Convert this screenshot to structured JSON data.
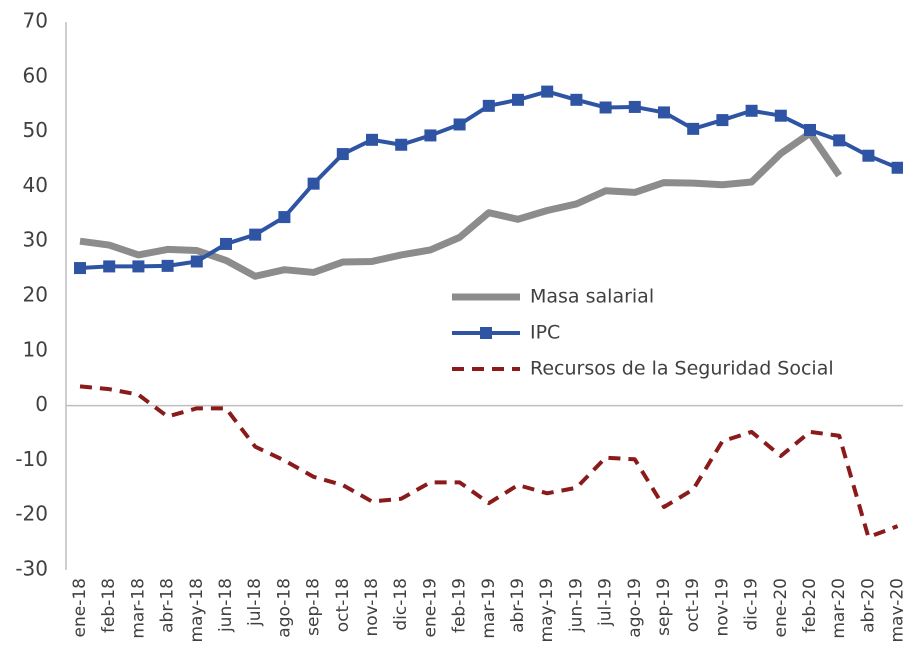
{
  "chart_data": {
    "type": "line",
    "categories": [
      "ene-18",
      "feb-18",
      "mar-18",
      "abr-18",
      "may-18",
      "jun-18",
      "jul-18",
      "ago-18",
      "sep-18",
      "oct-18",
      "nov-18",
      "dic-18",
      "ene-19",
      "feb-19",
      "mar-19",
      "abr-19",
      "may-19",
      "jun-19",
      "jul-19",
      "ago-19",
      "sep-19",
      "oct-19",
      "nov-19",
      "dic-19",
      "ene-20",
      "feb-20",
      "mar-20",
      "abr-20",
      "may-20"
    ],
    "series": [
      {
        "name": "Masa salarial",
        "color": "#8c8c8c",
        "values": [
          30,
          29.3,
          27.5,
          28.5,
          28.3,
          26.5,
          23.6,
          24.8,
          24.3,
          26.2,
          26.3,
          27.5,
          28.4,
          30.7,
          35.2,
          34,
          35.6,
          36.8,
          39.2,
          38.9,
          40.7,
          40.6,
          40.3,
          40.8,
          46,
          49.7,
          42,
          null,
          null
        ]
      },
      {
        "name": "IPC",
        "color": "#2e54a3",
        "values": [
          25.1,
          25.4,
          25.4,
          25.5,
          26.3,
          29.5,
          31.2,
          34.4,
          40.5,
          45.9,
          48.5,
          47.6,
          49.3,
          51.3,
          54.7,
          55.8,
          57.3,
          55.8,
          54.4,
          54.5,
          53.5,
          50.5,
          52.1,
          53.8,
          52.9,
          50.3,
          48.4,
          45.6,
          43.4
        ]
      },
      {
        "name": "Recursos de la Seguridad Social",
        "color": "#8b1a1a",
        "values": [
          3.5,
          3,
          2,
          -2,
          -0.5,
          -0.5,
          -7.5,
          -10,
          -13,
          -14.5,
          -17.5,
          -17,
          -14,
          -14,
          -17.8,
          -14.5,
          -16,
          -15,
          -9.5,
          -9.8,
          -18.5,
          -15.3,
          -6.5,
          -4.8,
          -9.2,
          -4.8,
          -5.5,
          -24,
          -22
        ]
      }
    ],
    "ylim": [
      -30,
      70
    ],
    "yticks": [
      -30,
      -20,
      -10,
      0,
      10,
      20,
      30,
      40,
      50,
      60,
      70
    ]
  }
}
